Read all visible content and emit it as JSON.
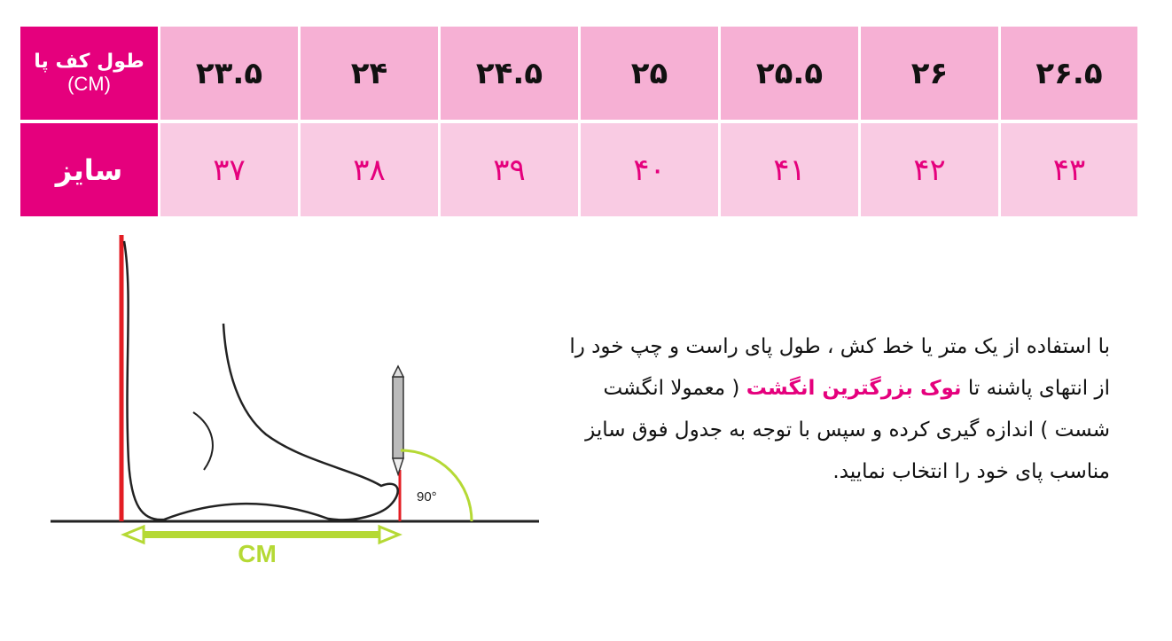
{
  "table": {
    "row_headers": {
      "length_label": "طول کف پا",
      "length_unit": "(CM)",
      "size_label": "سایز"
    },
    "foot_length_cm": [
      "۲۳.۵",
      "۲۴",
      "۲۴.۵",
      "۲۵",
      "۲۵.۵",
      "۲۶",
      "۲۶.۵"
    ],
    "sizes": [
      "۳۷",
      "۳۸",
      "۳۹",
      "۴۰",
      "۴۱",
      "۴۲",
      "۴۳"
    ]
  },
  "illustration": {
    "angle_label": "90°",
    "measure_label": "CM"
  },
  "instructions": {
    "part1": "با استفاده از یک متر یا خط کش ، طول پای راست و چپ خود را از انتهای پاشنه تا ",
    "highlight": "نوک بزرگترین انگشت",
    "part2": " ( معمولا انگشت شست ) اندازه گیری کرده و سپس با توجه به جدول فوق سایز مناسب پای خود را انتخاب نمایید."
  },
  "colors": {
    "accent": "#e5007d",
    "row1_bg": "#f6b0d4",
    "row2_bg": "#f9cbe3",
    "measure_green": "#b5d935",
    "line_red": "#e31e24"
  }
}
